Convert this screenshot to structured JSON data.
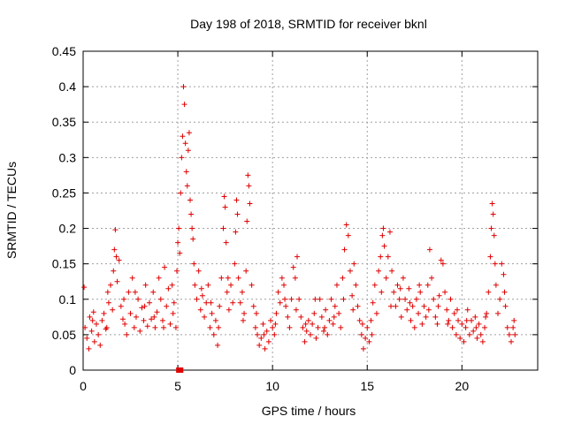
{
  "chart_data": {
    "type": "scatter",
    "title": "Day 198 of 2018, SRMTID for receiver bknl",
    "xlabel": "GPS time / hours",
    "ylabel": "SRMTID / TECUs",
    "xlim": [
      0,
      24
    ],
    "ylim": [
      0,
      0.45
    ],
    "xticks": [
      0,
      5,
      10,
      15,
      20
    ],
    "yticks": [
      0,
      0.05,
      0.1,
      0.15,
      0.2,
      0.25,
      0.3,
      0.35,
      0.4,
      0.45
    ],
    "grid": true,
    "legend": "none",
    "marker": "plus",
    "marker_color": "#e00000",
    "series": [
      {
        "name": "",
        "points": [
          [
            0.05,
            0.117
          ],
          [
            0.1,
            0.06
          ],
          [
            0.2,
            0.045
          ],
          [
            0.3,
            0.03
          ],
          [
            0.35,
            0.075
          ],
          [
            0.45,
            0.055
          ],
          [
            0.55,
            0.082
          ],
          [
            0.6,
            0.04
          ],
          [
            0.7,
            0.065
          ],
          [
            0.8,
            0.05
          ],
          [
            0.9,
            0.035
          ],
          [
            1.0,
            0.07
          ],
          [
            1.1,
            0.08
          ],
          [
            1.2,
            0.058
          ],
          [
            1.3,
            0.11
          ],
          [
            1.35,
            0.095
          ],
          [
            1.45,
            0.12
          ],
          [
            1.55,
            0.085
          ],
          [
            1.6,
            0.14
          ],
          [
            1.65,
            0.17
          ],
          [
            1.7,
            0.198
          ],
          [
            1.75,
            0.16
          ],
          [
            1.8,
            0.125
          ],
          [
            1.9,
            0.155
          ],
          [
            2.0,
            0.09
          ],
          [
            2.1,
            0.072
          ],
          [
            2.2,
            0.065
          ],
          [
            2.3,
            0.05
          ],
          [
            2.4,
            0.11
          ],
          [
            2.5,
            0.08
          ],
          [
            2.6,
            0.13
          ],
          [
            2.7,
            0.06
          ],
          [
            2.8,
            0.075
          ],
          [
            2.9,
            0.1
          ],
          [
            3.0,
            0.055
          ],
          [
            3.1,
            0.088
          ],
          [
            3.2,
            0.07
          ],
          [
            3.3,
            0.12
          ],
          [
            3.4,
            0.062
          ],
          [
            3.5,
            0.095
          ],
          [
            3.6,
            0.072
          ],
          [
            3.7,
            0.11
          ],
          [
            3.8,
            0.06
          ],
          [
            3.9,
            0.082
          ],
          [
            4.0,
            0.13
          ],
          [
            4.1,
            0.1
          ],
          [
            4.2,
            0.07
          ],
          [
            4.3,
            0.145
          ],
          [
            4.4,
            0.09
          ],
          [
            4.5,
            0.115
          ],
          [
            4.6,
            0.065
          ],
          [
            4.7,
            0.12
          ],
          [
            4.8,
            0.095
          ],
          [
            4.9,
            0.06
          ],
          [
            4.95,
            0.14
          ],
          [
            5.0,
            0.18
          ],
          [
            5.05,
            0.2
          ],
          [
            5.1,
            0.165
          ],
          [
            5.15,
            0.25
          ],
          [
            5.2,
            0.3
          ],
          [
            5.25,
            0.33
          ],
          [
            5.3,
            0.4
          ],
          [
            5.35,
            0.375
          ],
          [
            5.4,
            0.32
          ],
          [
            5.45,
            0.28
          ],
          [
            5.5,
            0.26
          ],
          [
            5.55,
            0.31
          ],
          [
            5.6,
            0.335
          ],
          [
            5.65,
            0.24
          ],
          [
            5.7,
            0.22
          ],
          [
            5.75,
            0.2
          ],
          [
            5.8,
            0.185
          ],
          [
            5.85,
            0.15
          ],
          [
            5.9,
            0.12
          ],
          [
            6.0,
            0.1
          ],
          [
            6.1,
            0.14
          ],
          [
            6.2,
            0.085
          ],
          [
            6.3,
            0.105
          ],
          [
            6.4,
            0.075
          ],
          [
            6.5,
            0.095
          ],
          [
            6.6,
            0.12
          ],
          [
            6.7,
            0.06
          ],
          [
            6.8,
            0.08
          ],
          [
            6.9,
            0.05
          ],
          [
            7.0,
            0.07
          ],
          [
            7.1,
            0.035
          ],
          [
            7.2,
            0.09
          ],
          [
            7.3,
            0.13
          ],
          [
            7.4,
            0.2
          ],
          [
            7.45,
            0.245
          ],
          [
            7.5,
            0.23
          ],
          [
            7.55,
            0.18
          ],
          [
            7.6,
            0.11
          ],
          [
            7.7,
            0.085
          ],
          [
            7.8,
            0.12
          ],
          [
            7.9,
            0.095
          ],
          [
            8.0,
            0.15
          ],
          [
            8.05,
            0.195
          ],
          [
            8.1,
            0.24
          ],
          [
            8.15,
            0.22
          ],
          [
            8.2,
            0.13
          ],
          [
            8.3,
            0.095
          ],
          [
            8.4,
            0.11
          ],
          [
            8.5,
            0.08
          ],
          [
            8.6,
            0.14
          ],
          [
            8.65,
            0.21
          ],
          [
            8.7,
            0.275
          ],
          [
            8.75,
            0.26
          ],
          [
            8.8,
            0.235
          ],
          [
            8.9,
            0.12
          ],
          [
            9.0,
            0.09
          ],
          [
            9.1,
            0.06
          ],
          [
            9.2,
            0.05
          ],
          [
            9.3,
            0.035
          ],
          [
            9.4,
            0.045
          ],
          [
            9.5,
            0.065
          ],
          [
            9.6,
            0.03
          ],
          [
            9.7,
            0.055
          ],
          [
            9.8,
            0.04
          ],
          [
            9.9,
            0.07
          ],
          [
            10.0,
            0.06
          ],
          [
            10.1,
            0.05
          ],
          [
            10.2,
            0.08
          ],
          [
            10.3,
            0.11
          ],
          [
            10.4,
            0.095
          ],
          [
            10.5,
            0.13
          ],
          [
            10.6,
            0.12
          ],
          [
            10.7,
            0.09
          ],
          [
            10.8,
            0.075
          ],
          [
            10.9,
            0.06
          ],
          [
            11.0,
            0.1
          ],
          [
            11.1,
            0.145
          ],
          [
            11.2,
            0.13
          ],
          [
            11.3,
            0.16
          ],
          [
            11.4,
            0.1
          ],
          [
            11.5,
            0.075
          ],
          [
            11.6,
            0.06
          ],
          [
            11.7,
            0.04
          ],
          [
            11.8,
            0.055
          ],
          [
            11.9,
            0.07
          ],
          [
            12.0,
            0.05
          ],
          [
            12.1,
            0.065
          ],
          [
            12.2,
            0.08
          ],
          [
            12.3,
            0.045
          ],
          [
            12.4,
            0.06
          ],
          [
            12.5,
            0.1
          ],
          [
            12.6,
            0.075
          ],
          [
            12.7,
            0.055
          ],
          [
            12.8,
            0.085
          ],
          [
            12.9,
            0.05
          ],
          [
            13.0,
            0.07
          ],
          [
            13.1,
            0.1
          ],
          [
            13.2,
            0.065
          ],
          [
            13.3,
            0.09
          ],
          [
            13.4,
            0.12
          ],
          [
            13.5,
            0.08
          ],
          [
            13.6,
            0.06
          ],
          [
            13.7,
            0.13
          ],
          [
            13.8,
            0.17
          ],
          [
            13.9,
            0.205
          ],
          [
            14.0,
            0.19
          ],
          [
            14.1,
            0.14
          ],
          [
            14.2,
            0.105
          ],
          [
            14.3,
            0.15
          ],
          [
            14.4,
            0.12
          ],
          [
            14.5,
            0.09
          ],
          [
            14.6,
            0.07
          ],
          [
            14.7,
            0.05
          ],
          [
            14.8,
            0.03
          ],
          [
            14.9,
            0.045
          ],
          [
            15.0,
            0.06
          ],
          [
            15.1,
            0.04
          ],
          [
            15.2,
            0.07
          ],
          [
            15.3,
            0.095
          ],
          [
            15.4,
            0.12
          ],
          [
            15.5,
            0.08
          ],
          [
            15.6,
            0.14
          ],
          [
            15.7,
            0.16
          ],
          [
            15.8,
            0.19
          ],
          [
            15.85,
            0.2
          ],
          [
            15.9,
            0.175
          ],
          [
            16.0,
            0.13
          ],
          [
            16.1,
            0.16
          ],
          [
            16.2,
            0.195
          ],
          [
            16.3,
            0.14
          ],
          [
            16.4,
            0.11
          ],
          [
            16.5,
            0.09
          ],
          [
            16.6,
            0.12
          ],
          [
            16.7,
            0.1
          ],
          [
            16.8,
            0.075
          ],
          [
            16.9,
            0.13
          ],
          [
            17.0,
            0.1
          ],
          [
            17.1,
            0.085
          ],
          [
            17.2,
            0.115
          ],
          [
            17.3,
            0.07
          ],
          [
            17.4,
            0.09
          ],
          [
            17.5,
            0.06
          ],
          [
            17.6,
            0.1
          ],
          [
            17.7,
            0.08
          ],
          [
            17.8,
            0.11
          ],
          [
            17.9,
            0.065
          ],
          [
            18.0,
            0.09
          ],
          [
            18.1,
            0.075
          ],
          [
            18.2,
            0.12
          ],
          [
            18.3,
            0.17
          ],
          [
            18.4,
            0.13
          ],
          [
            18.5,
            0.1
          ],
          [
            18.6,
            0.075
          ],
          [
            18.7,
            0.065
          ],
          [
            18.8,
            0.105
          ],
          [
            18.9,
            0.155
          ],
          [
            19.0,
            0.15
          ],
          [
            19.1,
            0.11
          ],
          [
            19.2,
            0.085
          ],
          [
            19.3,
            0.07
          ],
          [
            19.4,
            0.1
          ],
          [
            19.5,
            0.06
          ],
          [
            19.6,
            0.08
          ],
          [
            19.7,
            0.05
          ],
          [
            19.8,
            0.07
          ],
          [
            19.9,
            0.045
          ],
          [
            20.0,
            0.065
          ],
          [
            20.1,
            0.04
          ],
          [
            20.2,
            0.06
          ],
          [
            20.3,
            0.085
          ],
          [
            20.4,
            0.05
          ],
          [
            20.5,
            0.07
          ],
          [
            20.6,
            0.055
          ],
          [
            20.7,
            0.075
          ],
          [
            20.8,
            0.045
          ],
          [
            20.9,
            0.065
          ],
          [
            21.0,
            0.05
          ],
          [
            21.1,
            0.04
          ],
          [
            21.2,
            0.06
          ],
          [
            21.3,
            0.08
          ],
          [
            21.4,
            0.11
          ],
          [
            21.5,
            0.16
          ],
          [
            21.55,
            0.2
          ],
          [
            21.6,
            0.235
          ],
          [
            21.65,
            0.22
          ],
          [
            21.7,
            0.19
          ],
          [
            21.8,
            0.12
          ],
          [
            21.9,
            0.08
          ],
          [
            22.0,
            0.1
          ],
          [
            22.1,
            0.15
          ],
          [
            22.2,
            0.135
          ],
          [
            22.3,
            0.09
          ],
          [
            22.4,
            0.06
          ],
          [
            22.5,
            0.05
          ],
          [
            22.6,
            0.04
          ],
          [
            22.7,
            0.06
          ],
          [
            22.8,
            0.05
          ],
          [
            0.5,
            0.07
          ],
          [
            1.25,
            0.06
          ],
          [
            2.15,
            0.1
          ],
          [
            2.75,
            0.11
          ],
          [
            3.25,
            0.09
          ],
          [
            3.75,
            0.075
          ],
          [
            4.25,
            0.06
          ],
          [
            4.75,
            0.08
          ],
          [
            6.25,
            0.115
          ],
          [
            6.75,
            0.095
          ],
          [
            7.15,
            0.06
          ],
          [
            7.65,
            0.13
          ],
          [
            8.45,
            0.07
          ],
          [
            9.15,
            0.08
          ],
          [
            9.55,
            0.05
          ],
          [
            10.15,
            0.065
          ],
          [
            10.65,
            0.1
          ],
          [
            11.25,
            0.085
          ],
          [
            11.75,
            0.065
          ],
          [
            12.25,
            0.1
          ],
          [
            12.75,
            0.06
          ],
          [
            13.25,
            0.075
          ],
          [
            13.75,
            0.1
          ],
          [
            14.25,
            0.085
          ],
          [
            14.75,
            0.065
          ],
          [
            15.25,
            0.05
          ],
          [
            15.75,
            0.11
          ],
          [
            16.25,
            0.09
          ],
          [
            16.75,
            0.115
          ],
          [
            17.25,
            0.095
          ],
          [
            17.75,
            0.12
          ],
          [
            18.25,
            0.085
          ],
          [
            18.75,
            0.09
          ],
          [
            19.25,
            0.065
          ],
          [
            19.75,
            0.085
          ],
          [
            20.25,
            0.07
          ],
          [
            20.75,
            0.06
          ],
          [
            21.25,
            0.075
          ],
          [
            21.75,
            0.15
          ],
          [
            22.25,
            0.11
          ],
          [
            22.75,
            0.07
          ]
        ]
      }
    ],
    "outlier_markers": [
      {
        "x": 5.05,
        "y": 0.0,
        "marker": "square"
      },
      {
        "x": 5.15,
        "y": 0.0,
        "marker": "square"
      }
    ]
  }
}
